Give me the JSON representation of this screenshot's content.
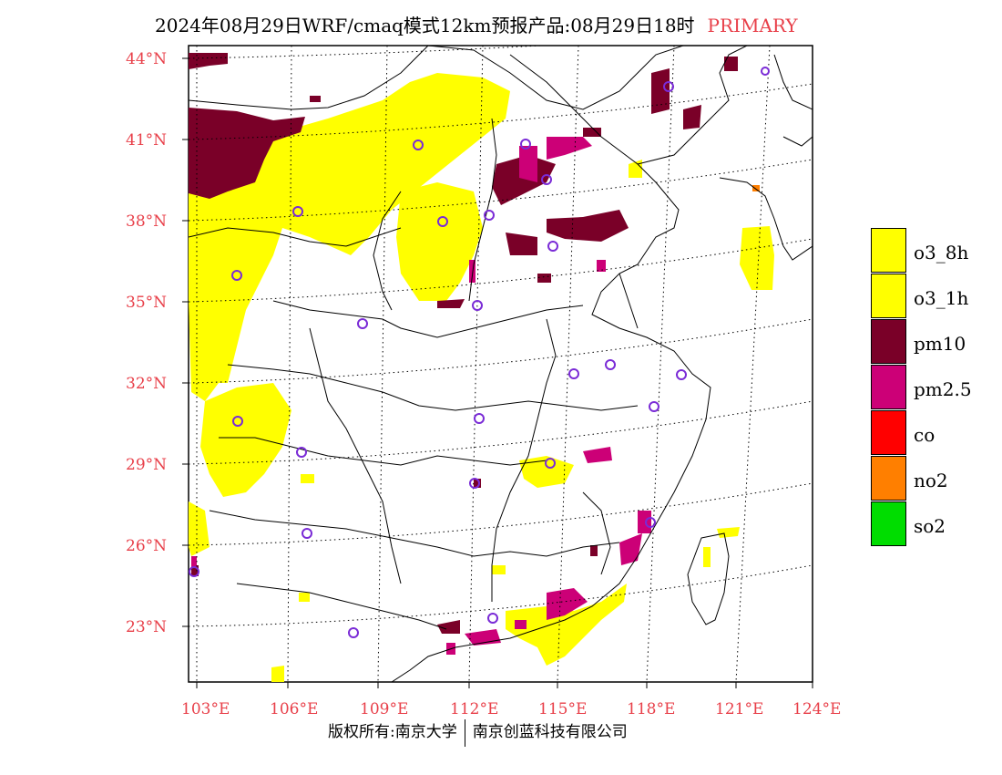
{
  "header": {
    "title": "2024年08月29日WRF/cmaq模式12km预报产品:08月29日18时",
    "tag": "PRIMARY"
  },
  "map": {
    "lat_labels": [
      "44°N",
      "41°N",
      "38°N",
      "35°N",
      "32°N",
      "29°N",
      "26°N",
      "23°N"
    ],
    "lon_labels": [
      "103°E",
      "106°E",
      "109°E",
      "112°E",
      "115°E",
      "118°E",
      "121°E",
      "124°E"
    ]
  },
  "legend": {
    "items": [
      {
        "label": "o3_8h",
        "color": "#ffff00"
      },
      {
        "label": "o3_1h",
        "color": "#ffff00"
      },
      {
        "label": "pm10",
        "color": "#7a0028"
      },
      {
        "label": "pm2.5",
        "color": "#cc0077"
      },
      {
        "label": "co",
        "color": "#ff0000"
      },
      {
        "label": "no2",
        "color": "#ff7f00"
      },
      {
        "label": "so2",
        "color": "#00dd00"
      }
    ]
  },
  "footer": {
    "left": "版权所有:南京大学",
    "right": "南京创蓝科技有限公司"
  }
}
